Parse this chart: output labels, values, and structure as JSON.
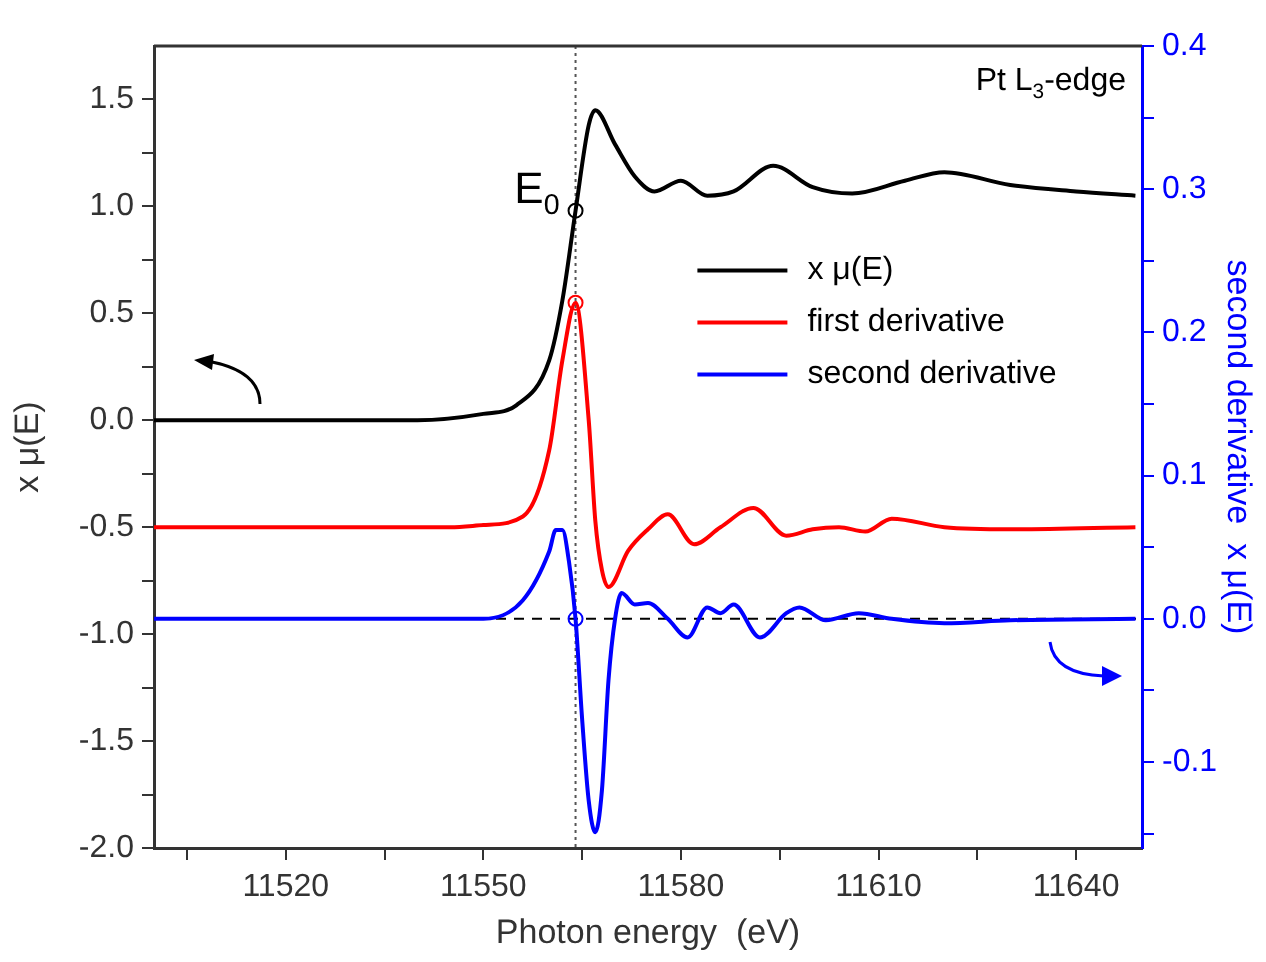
{
  "chart_data": {
    "type": "line",
    "xlabel": "Photon energy  (eV)",
    "ylabel": "x μ(E)",
    "y2label": "second derivative  x μ(E)",
    "xlim": [
      11500,
      11650
    ],
    "xticks": [
      {
        "value": 11505,
        "label": null
      },
      11520,
      {
        "value": 11535,
        "label": null
      },
      11550,
      {
        "value": 11565,
        "label": null
      },
      11580,
      {
        "value": 11595,
        "label": null
      },
      11610,
      {
        "value": 11625,
        "label": null
      },
      11640
    ],
    "ylim": [
      -2,
      1.75
    ],
    "yticks": [
      {
        "value": -2,
        "label": "-2.0"
      },
      {
        "value": -1.75,
        "label": null
      },
      -1.5,
      {
        "value": -1.25,
        "label": null
      },
      {
        "value": -1,
        "label": "-1.0"
      },
      {
        "value": -0.75,
        "label": null
      },
      -0.5,
      {
        "value": -0.25,
        "label": null
      },
      {
        "value": 0,
        "label": "0.0"
      },
      {
        "value": 0.25,
        "label": null
      },
      0.5,
      {
        "value": 0.75,
        "label": null
      },
      {
        "value": 1,
        "label": "1.0"
      },
      {
        "value": 1.25,
        "label": null
      },
      1.5
    ],
    "y2lim": [
      -0.16,
      0.4
    ],
    "y2ticks": [
      {
        "value": -0.15,
        "label": null
      },
      -0.1,
      {
        "value": -0.05,
        "label": null
      },
      {
        "value": 0,
        "label": "0.0"
      },
      {
        "value": 0.05,
        "label": null
      },
      0.1,
      {
        "value": 0.15,
        "label": null
      },
      0.2,
      {
        "value": 0.25,
        "label": null
      },
      0.3,
      {
        "value": 0.35,
        "label": null
      },
      0.4
    ],
    "grid": false,
    "legend": "top right",
    "line_style": "solid",
    "marker": "none",
    "series": [
      {
        "name": "x μ(E)",
        "color": "#000000",
        "x": [
          11500,
          11540,
          11550,
          11555,
          11560,
          11562,
          11564,
          11566,
          11567,
          11570,
          11573,
          11576,
          11580,
          11584,
          11588,
          11594,
          11600,
          11606,
          11614,
          11620,
          11630,
          11640,
          11649
        ],
        "values": [
          0,
          0,
          0.03,
          0.07,
          0.28,
          0.56,
          0.98,
          1.38,
          1.45,
          1.29,
          1.14,
          1.07,
          1.12,
          1.05,
          1.07,
          1.19,
          1.09,
          1.06,
          1.12,
          1.16,
          1.1,
          1.07,
          1.05
        ]
      },
      {
        "name": "first derivative",
        "color": "#ff0000",
        "x": [
          11500,
          11545,
          11550,
          11556,
          11560,
          11562,
          11564,
          11566,
          11567,
          11568,
          11569,
          11572,
          11575,
          11578,
          11582,
          11586,
          11591,
          11596,
          11600,
          11604,
          11608,
          11612,
          11620,
          11630,
          11649
        ],
        "values": [
          -0.5,
          -0.5,
          -0.49,
          -0.45,
          -0.14,
          0.28,
          0.55,
          0,
          -0.47,
          -0.7,
          -0.78,
          -0.61,
          -0.51,
          -0.44,
          -0.58,
          -0.5,
          -0.41,
          -0.54,
          -0.51,
          -0.5,
          -0.52,
          -0.46,
          -0.5,
          -0.51,
          -0.5
        ]
      },
      {
        "name": "second derivative",
        "color": "#0000ff",
        "axis": "y2",
        "x": [
          11500,
          11550,
          11556,
          11560,
          11561,
          11562,
          11563,
          11564,
          11565,
          11566,
          11567,
          11568,
          11569,
          11570,
          11571,
          11573,
          11575,
          11578,
          11581,
          11584,
          11586,
          11588,
          11592,
          11596,
          11598,
          11602,
          11607,
          11612,
          11620,
          11630,
          11649
        ],
        "values": [
          0,
          0,
          0.013,
          0.047,
          0.062,
          0.062,
          0.04,
          0,
          -0.07,
          -0.127,
          -0.149,
          -0.12,
          -0.043,
          0,
          0.018,
          0.01,
          0.011,
          0,
          -0.013,
          0.008,
          0.004,
          0.01,
          -0.013,
          0.004,
          0.008,
          -0.001,
          0.004,
          0,
          -0.003,
          -0.001,
          0
        ]
      },
      {
        "type": "scatter",
        "marker": "circle",
        "color": "#000000",
        "x": [
          11564
        ],
        "values": [
          0.98
        ]
      },
      {
        "type": "scatter",
        "marker": "circle",
        "color": "#ff0000",
        "x": [
          11564
        ],
        "values": [
          0.55
        ]
      },
      {
        "type": "scatter",
        "marker": "circle",
        "color": "#0000ff",
        "axis": "y2",
        "x": [
          11564
        ],
        "values": [
          0
        ]
      }
    ],
    "ref_lines": [
      {
        "axis": "x",
        "value": 11564,
        "line_style": "dotted",
        "color": "#555555"
      },
      {
        "axis": "y2",
        "value": 0,
        "line_style": "dashed",
        "color": "#000000"
      }
    ],
    "annotations": [
      {
        "text": "E$_{0}$",
        "x": 11564,
        "y": 0.98
      },
      "Pt L$_{3}$-edge"
    ]
  }
}
